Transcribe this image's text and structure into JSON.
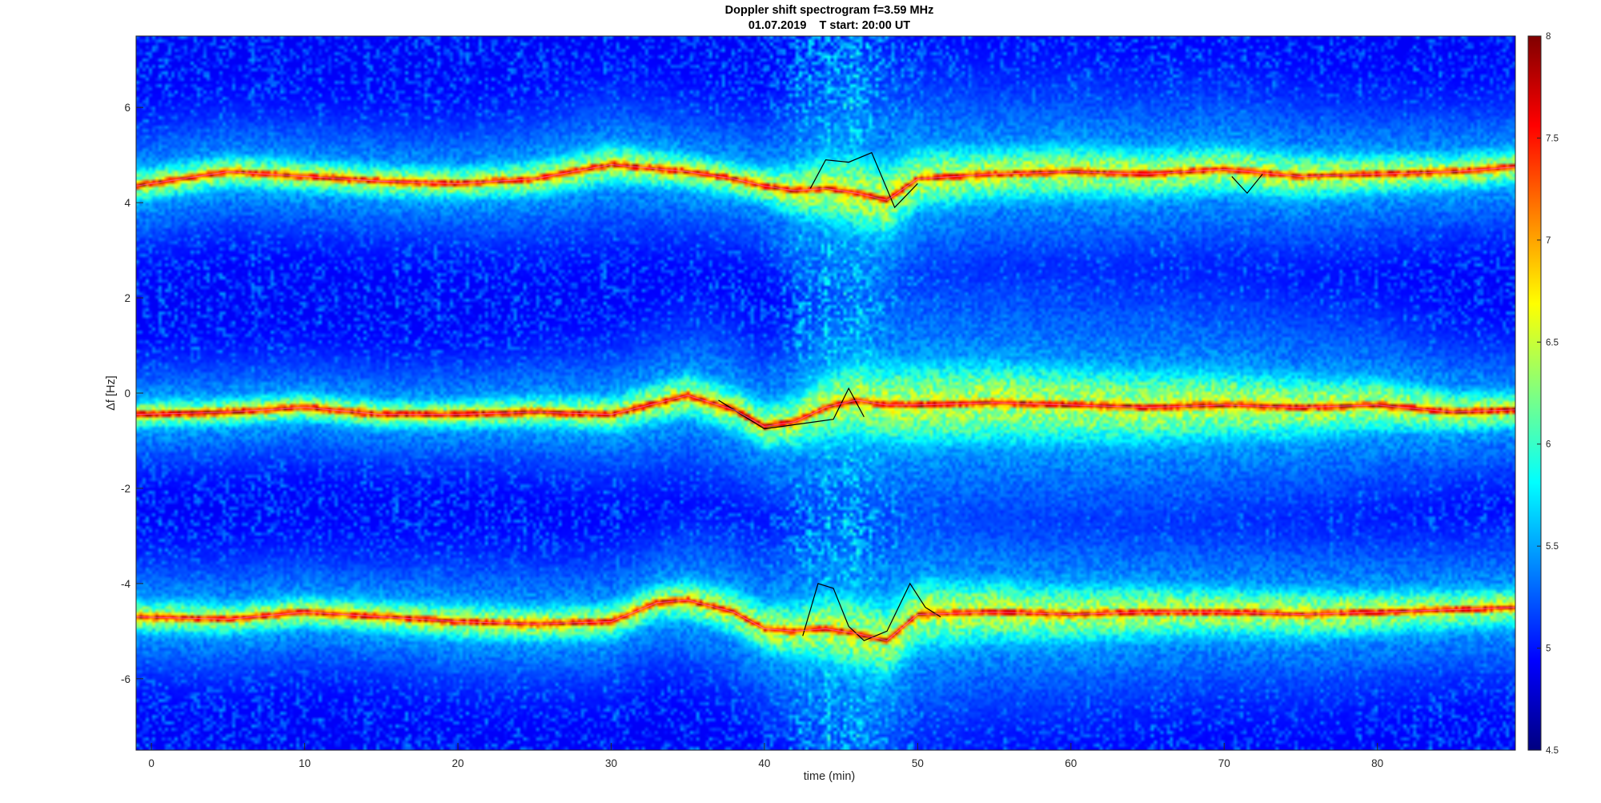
{
  "chart_data": {
    "type": "heatmap",
    "title": "Doppler shift spectrogram f=3.59 MHz",
    "subtitle": "01.07.2019    T start: 20:00 UT",
    "xlabel": "time (min)",
    "ylabel": "Δf [Hz]",
    "xlim": [
      -1,
      89
    ],
    "ylim": [
      -7.5,
      7.5
    ],
    "x_ticks": [
      0,
      10,
      20,
      30,
      40,
      50,
      60,
      70,
      80
    ],
    "y_ticks": [
      -6,
      -4,
      -2,
      0,
      2,
      4,
      6
    ],
    "colormap": "jet",
    "colorbar": {
      "range": [
        4.5,
        8
      ],
      "ticks": [
        "4.5",
        "5",
        "5.5",
        "6",
        "6.5",
        "7",
        "7.5",
        "8"
      ]
    },
    "background_intensity": 4.9,
    "series": [
      {
        "x": [
          -1,
          5,
          10,
          15,
          20,
          25,
          30,
          35,
          38,
          40,
          42,
          44,
          46,
          48,
          50,
          55,
          60,
          65,
          70,
          75,
          80,
          85,
          89
        ],
        "y": [
          4.35,
          4.65,
          4.55,
          4.45,
          4.4,
          4.5,
          4.8,
          4.65,
          4.5,
          4.35,
          4.25,
          4.3,
          4.2,
          4.05,
          4.5,
          4.6,
          4.65,
          4.6,
          4.7,
          4.55,
          4.6,
          4.65,
          4.75
        ],
        "peak_intensity": 7.7,
        "width_hz": [
          0.25,
          0.25,
          0.25,
          0.25,
          0.25,
          0.3,
          0.35,
          0.3,
          0.3,
          0.3,
          0.5,
          0.7,
          0.8,
          0.8,
          0.6,
          0.5,
          0.5,
          0.45,
          0.45,
          0.4,
          0.35,
          0.3,
          0.3
        ]
      },
      {
        "x": [
          -1,
          5,
          10,
          15,
          20,
          25,
          30,
          35,
          38,
          40,
          42,
          44,
          46,
          48,
          50,
          55,
          60,
          65,
          70,
          75,
          80,
          85,
          89
        ],
        "y": [
          -0.45,
          -0.4,
          -0.3,
          -0.45,
          -0.45,
          -0.4,
          -0.45,
          -0.05,
          -0.35,
          -0.7,
          -0.6,
          -0.3,
          -0.15,
          -0.25,
          -0.25,
          -0.2,
          -0.25,
          -0.3,
          -0.25,
          -0.3,
          -0.25,
          -0.4,
          -0.35
        ],
        "peak_intensity": 7.8,
        "width_hz": [
          0.2,
          0.2,
          0.2,
          0.2,
          0.2,
          0.25,
          0.3,
          0.4,
          0.4,
          0.4,
          0.5,
          0.7,
          0.8,
          0.85,
          0.85,
          0.85,
          0.8,
          0.75,
          0.7,
          0.6,
          0.5,
          0.35,
          0.3
        ]
      },
      {
        "x": [
          -1,
          5,
          10,
          15,
          20,
          25,
          30,
          33,
          35,
          38,
          40,
          42,
          44,
          46,
          48,
          50,
          55,
          60,
          65,
          70,
          75,
          80,
          85,
          89
        ],
        "y": [
          -4.7,
          -4.75,
          -4.6,
          -4.7,
          -4.8,
          -4.85,
          -4.8,
          -4.4,
          -4.35,
          -4.6,
          -4.95,
          -5.0,
          -4.95,
          -5.05,
          -5.2,
          -4.65,
          -4.6,
          -4.65,
          -4.6,
          -4.6,
          -4.65,
          -4.6,
          -4.55,
          -4.5
        ],
        "peak_intensity": 7.7,
        "width_hz": [
          0.25,
          0.25,
          0.25,
          0.25,
          0.3,
          0.3,
          0.3,
          0.3,
          0.35,
          0.4,
          0.45,
          0.55,
          0.7,
          0.8,
          0.8,
          0.7,
          0.6,
          0.55,
          0.5,
          0.45,
          0.45,
          0.4,
          0.35,
          0.35
        ]
      }
    ],
    "overlay_lines": [
      {
        "name": "track-upper",
        "color": "#000000",
        "x": [
          43,
          44,
          45.5,
          47,
          48.5,
          50
        ],
        "y": [
          4.3,
          4.9,
          4.85,
          5.05,
          3.9,
          4.4
        ]
      },
      {
        "name": "track-upper-2",
        "color": "#000000",
        "x": [
          70.5,
          71.5,
          72.5
        ],
        "y": [
          4.55,
          4.2,
          4.6
        ]
      },
      {
        "name": "track-middle",
        "color": "#000000",
        "x": [
          37,
          38,
          40,
          44.5,
          45.5,
          46.5
        ],
        "y": [
          -0.15,
          -0.35,
          -0.75,
          -0.55,
          0.1,
          -0.5
        ]
      },
      {
        "name": "track-lower",
        "color": "#000000",
        "x": [
          42.5,
          43.5,
          44.5,
          45.5,
          46.5,
          48,
          49.5,
          50.5,
          51.5
        ],
        "y": [
          -5.1,
          -4.0,
          -4.1,
          -4.9,
          -5.2,
          -5.0,
          -4.0,
          -4.5,
          -4.7
        ]
      }
    ]
  }
}
